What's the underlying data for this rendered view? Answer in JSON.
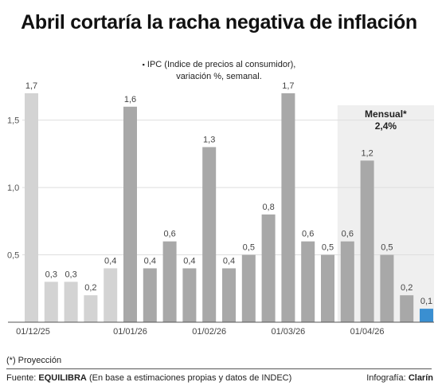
{
  "title": "Abril cortaría la racha negativa de inflación",
  "subtitle_bullet": "▪",
  "subtitle_line1": "IPC (Indice de precios al consumidor),",
  "subtitle_line2": "variación %, semanal.",
  "footnote": "(*) Proyección",
  "source_prefix": "Fuente:",
  "source_name": "EQUILIBRA",
  "source_suffix": "(En base a estimaciones propias y datos de INDEC)",
  "credit_prefix": "Infografía:",
  "credit_name": "Clarín",
  "chart_data": {
    "type": "bar",
    "title": "Abril cortaría la racha negativa de inflación",
    "ylabel": "",
    "xlabel": "",
    "ylim": [
      0,
      1.8
    ],
    "yticks": [
      0.5,
      1.0,
      1.5
    ],
    "ytick_labels": [
      "0,5",
      "1,0",
      "1,5"
    ],
    "grid": true,
    "values": [
      1.7,
      0.3,
      0.3,
      0.2,
      0.4,
      1.6,
      0.4,
      0.6,
      0.4,
      1.3,
      0.4,
      0.5,
      0.8,
      1.7,
      0.6,
      0.5,
      0.6,
      1.2,
      0.5,
      0.2,
      0.1
    ],
    "value_labels": [
      "1,7",
      "0,3",
      "0,3",
      "0,2",
      "0,4",
      "1,6",
      "0,4",
      "0,6",
      "0,4",
      "1,3",
      "0,4",
      "0,5",
      "0,8",
      "1,7",
      "0,6",
      "0,5",
      "0,6",
      "1,2",
      "0,5",
      "0,2",
      "0,1"
    ],
    "bar_groups": [
      "dic",
      "dic",
      "dic",
      "dic",
      "dic",
      "ene",
      "ene",
      "ene",
      "ene",
      "feb",
      "feb",
      "feb",
      "feb",
      "mar",
      "mar",
      "mar",
      "abr",
      "abr",
      "abr",
      "abr",
      "proj"
    ],
    "x_tick_labels": [
      {
        "bar": 0,
        "label": "01/12/25"
      },
      {
        "bar": 5,
        "label": "01/01/26"
      },
      {
        "bar": 9,
        "label": "01/02/26"
      },
      {
        "bar": 13,
        "label": "01/03/26"
      },
      {
        "bar": 17,
        "label": "01/04/26"
      }
    ],
    "highlight": {
      "from_bar": 16,
      "to_bar": 20,
      "label": "Mensual*",
      "value": "2,4%"
    },
    "colors": {
      "light": "#d3d3d3",
      "dark": "#a8a8a8",
      "projection": "#3a8fd1",
      "highlight_bg": "#efefef",
      "grid": "#dedede",
      "axis": "#555555"
    }
  }
}
